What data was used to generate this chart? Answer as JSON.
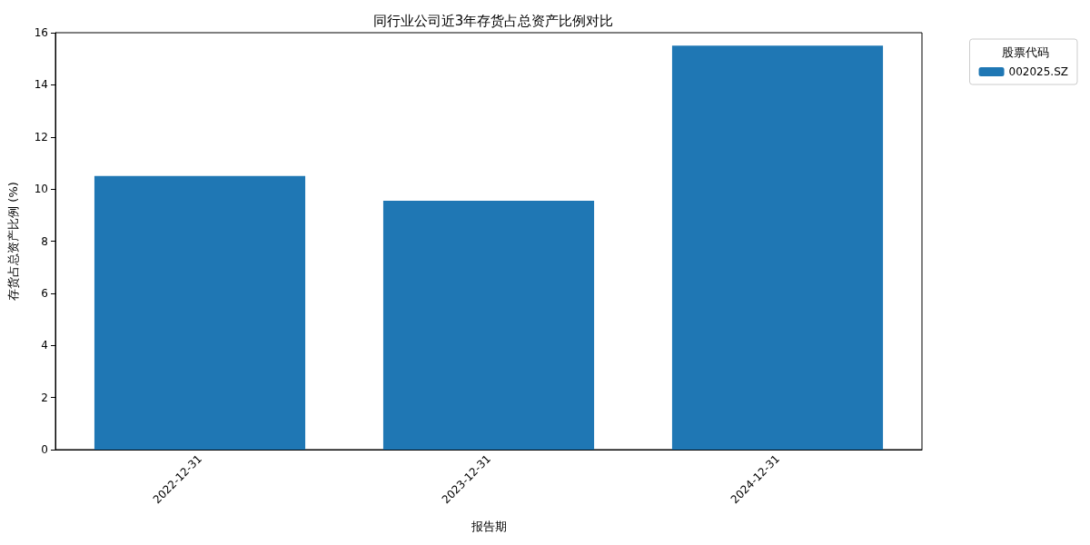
{
  "chart_data": {
    "type": "bar",
    "title": "同行业公司近3年存货占总资产比例对比",
    "xlabel": "报告期",
    "ylabel": "存货占总资产比例 (%)",
    "legend_title": "股票代码",
    "categories": [
      "2022-12-31",
      "2023-12-31",
      "2024-12-31"
    ],
    "series": [
      {
        "name": "002025.SZ",
        "color": "#1f77b4",
        "values": [
          10.5,
          9.55,
          15.5
        ]
      }
    ],
    "ylim": [
      0,
      16
    ],
    "yticks": [
      0,
      2,
      4,
      6,
      8,
      10,
      12,
      14,
      16
    ],
    "grid": false,
    "legend": "top right"
  }
}
